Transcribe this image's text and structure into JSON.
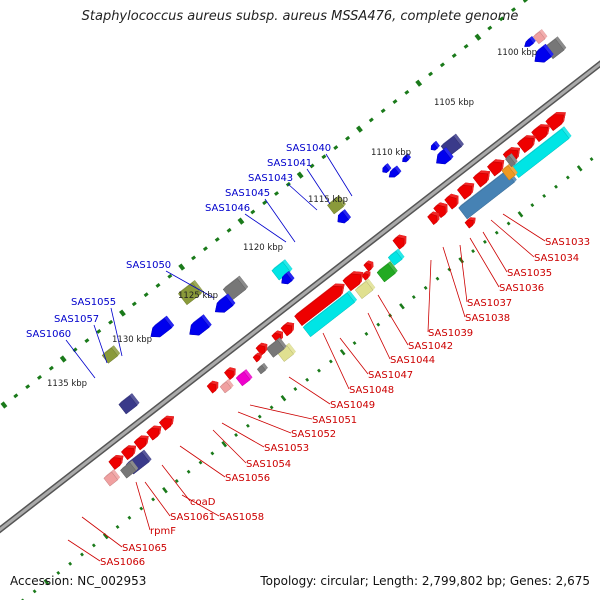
{
  "title": "Staphylococcus aureus subsp. aureus MSSA476, complete genome",
  "footer": {
    "accession": "Accession: NC_002953",
    "summary": "Topology: circular; Length: 2,799,802 bp; Genes: 2,675"
  },
  "scale_labels": [
    "1100 kbp",
    "1105 kbp",
    "1110 kbp",
    "1115 kbp",
    "1120 kbp",
    "1125 kbp",
    "1130 kbp",
    "1135 kbp"
  ],
  "forward_gene_labels": [
    "SAS1040",
    "SAS1041",
    "SAS1043",
    "SAS1045",
    "SAS1046",
    "SAS1050",
    "SAS1055",
    "SAS1057",
    "SAS1060"
  ],
  "reverse_gene_labels": [
    "SAS1033",
    "SAS1034",
    "SAS1035",
    "SAS1036",
    "SAS1037",
    "SAS1038",
    "SAS1039",
    "SAS1042",
    "SAS1044",
    "SAS1047",
    "SAS1048",
    "SAS1049",
    "SAS1051",
    "SAS1052",
    "SAS1053",
    "SAS1054",
    "SAS1056",
    "SAS1058",
    "coaD",
    "SAS1061",
    "rpmF",
    "SAS1065",
    "SAS1066"
  ],
  "colors": {
    "forward_gene": "#0000ee",
    "reverse_gene": "#ee0000",
    "label_forward": "#0000cc",
    "label_reverse": "#cc0000",
    "backbone": "#888888",
    "tick": "#1a7a1a",
    "cyan_feature": "#00e5e5",
    "steelblue_feature": "#4682b4",
    "olive_feature": "#8a9a3a",
    "navy_feature": "#3a3a8a",
    "gray_feature": "#777777",
    "green_feature": "#22aa22",
    "khaki_feature": "#e0e090",
    "orange_feature": "#ee9922",
    "magenta_feature": "#ee00cc",
    "pink_feature": "#f0a0a0"
  }
}
